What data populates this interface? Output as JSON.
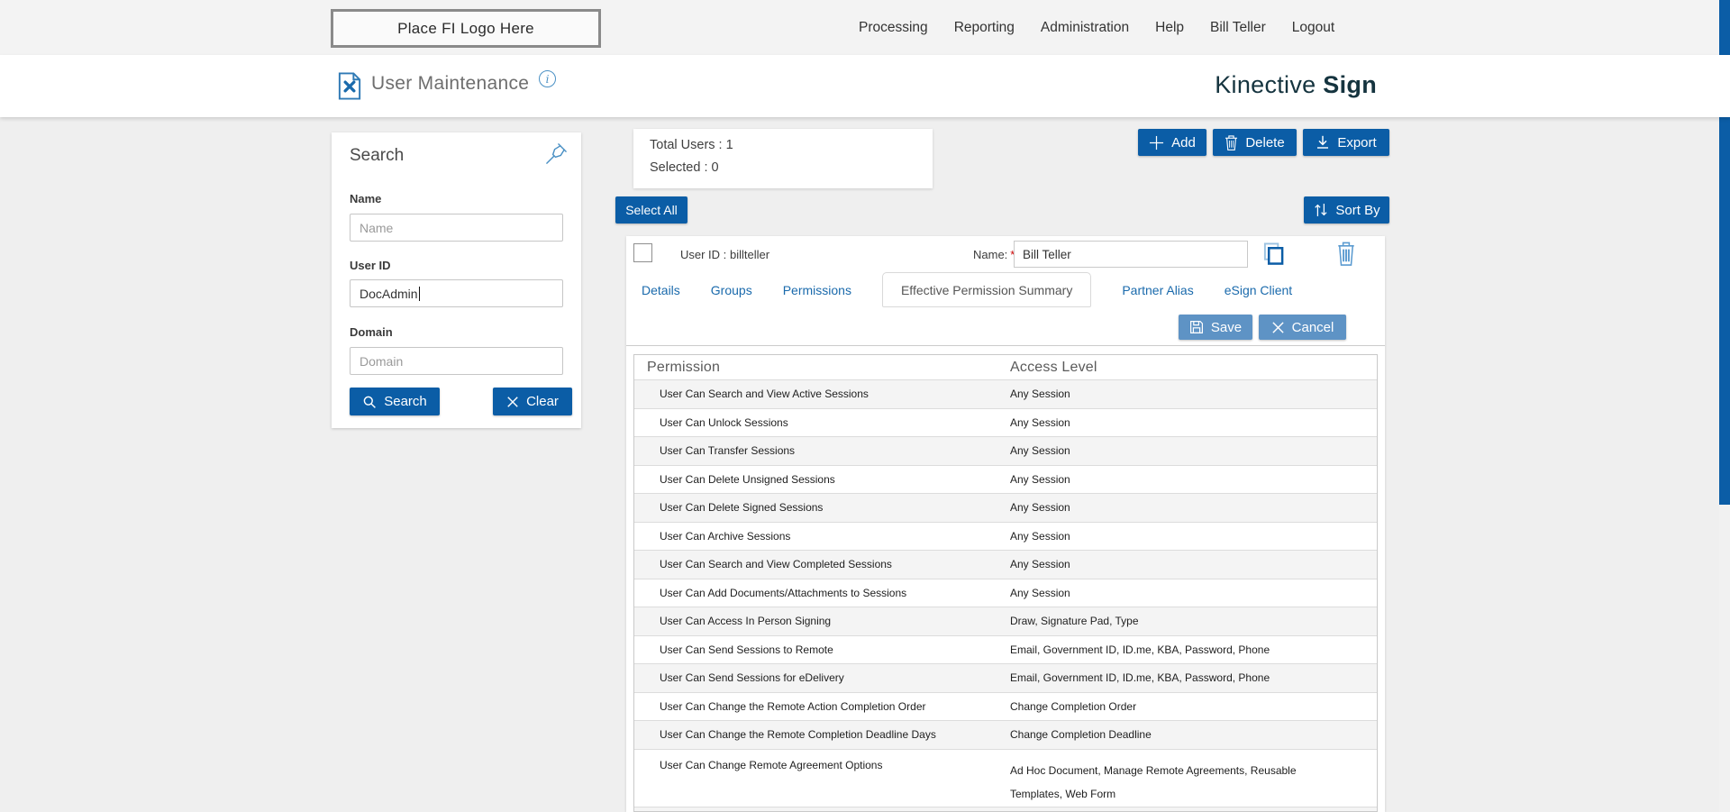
{
  "topbar": {
    "logo_placeholder": "Place FI Logo Here",
    "nav_items": [
      "Processing",
      "Reporting",
      "Administration",
      "Help",
      "Bill Teller",
      "Logout"
    ]
  },
  "header": {
    "title": "User Maintenance",
    "info_glyph": "i",
    "brand_regular": "Kinective",
    "brand_bold": "Sign"
  },
  "search_panel": {
    "title": "Search",
    "name_label": "Name",
    "name_placeholder": "Name",
    "user_id_label": "User ID",
    "user_id_value": "DocAdmin",
    "domain_label": "Domain",
    "domain_placeholder": "Domain",
    "search_button": "Search",
    "clear_button": "Clear"
  },
  "summary": {
    "total_users": "Total Users : 1",
    "selected": "Selected : 0"
  },
  "toolbar": {
    "add": "Add",
    "delete": "Delete",
    "export": "Export",
    "select_all": "Select All",
    "sort_by": "Sort By"
  },
  "user_card": {
    "user_id_label": "User ID :",
    "user_id_value": "billteller",
    "name_label": "Name:",
    "required_mark": "*",
    "name_value": "Bill Teller"
  },
  "tabs": [
    {
      "label": "Details",
      "active": false
    },
    {
      "label": "Groups",
      "active": false
    },
    {
      "label": "Permissions",
      "active": false
    },
    {
      "label": "Effective Permission Summary",
      "active": true
    },
    {
      "label": "Partner Alias",
      "active": false
    },
    {
      "label": "eSign Client",
      "active": false
    }
  ],
  "actions": {
    "save": "Save",
    "cancel": "Cancel"
  },
  "permissions_table": {
    "columns": [
      "Permission",
      "Access Level"
    ],
    "rows": [
      [
        "User Can Search and View Active Sessions",
        "Any Session"
      ],
      [
        "User Can Unlock Sessions",
        "Any Session"
      ],
      [
        "User Can Transfer Sessions",
        "Any Session"
      ],
      [
        "User Can Delete Unsigned Sessions",
        "Any Session"
      ],
      [
        "User Can Delete Signed Sessions",
        "Any Session"
      ],
      [
        "User Can Archive Sessions",
        "Any Session"
      ],
      [
        "User Can Search and View Completed Sessions",
        "Any Session"
      ],
      [
        "User Can Add Documents/Attachments to Sessions",
        "Any Session"
      ],
      [
        "User Can Access In Person Signing",
        "Draw, Signature Pad, Type"
      ],
      [
        "User Can Send Sessions to Remote",
        "Email, Government ID, ID.me, KBA, Password, Phone"
      ],
      [
        "User Can Send Sessions for eDelivery",
        "Email, Government ID, ID.me, KBA, Password, Phone"
      ],
      [
        "User Can Change the Remote Action Completion Order",
        "Change Completion Order"
      ],
      [
        "User Can Change the Remote Completion Deadline Days",
        "Change Completion Deadline"
      ],
      [
        "User Can Change Remote Agreement Options",
        "Ad Hoc Document, Manage Remote Agreements, Reusable Templates, Web Form"
      ]
    ]
  },
  "colors": {
    "primary_blue": "#0b5da6",
    "muted_blue": "#5e93c5",
    "link_blue": "#1a6aac",
    "icon_blue": "#4a90c4",
    "brand_teal": "#15343f",
    "stripe_gray": "#f4f4f4"
  }
}
